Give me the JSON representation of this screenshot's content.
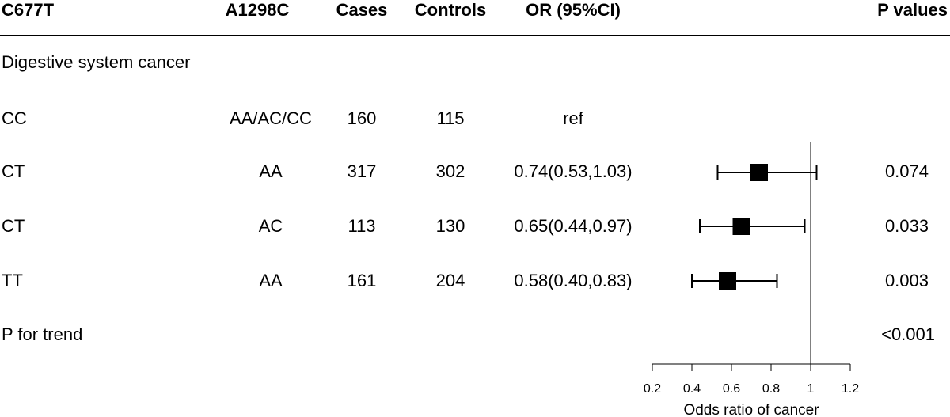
{
  "header": {
    "c677t": "C677T",
    "a1298c": "A1298C",
    "cases": "Cases",
    "controls": "Controls",
    "or": "OR (95%CI)",
    "pvalues": "P values"
  },
  "section_label": "Digestive system cancer",
  "rows": [
    {
      "c677t": "CC",
      "a1298c": "AA/AC/CC",
      "cases": "160",
      "controls": "115",
      "or_text": "ref",
      "p": ""
    },
    {
      "c677t": "CT",
      "a1298c": "AA",
      "cases": "317",
      "controls": "302",
      "or_text": "0.74(0.53,1.03)",
      "p": "0.074"
    },
    {
      "c677t": "CT",
      "a1298c": "AC",
      "cases": "113",
      "controls": "130",
      "or_text": "0.65(0.44,0.97)",
      "p": "0.033"
    },
    {
      "c677t": "TT",
      "a1298c": "AA",
      "cases": "161",
      "controls": "204",
      "or_text": "0.58(0.40,0.83)",
      "p": "0.003"
    }
  ],
  "trend": {
    "label": "P for trend",
    "p": "<0.001"
  },
  "chart_data": {
    "type": "forest",
    "xlabel": "Odds ratio of cancer",
    "xlim": [
      0.2,
      1.2
    ],
    "ticks": [
      0.2,
      0.4,
      0.6,
      0.8,
      1,
      1.2
    ],
    "tick_labels": [
      "0.2",
      "0.4",
      "0.6",
      "0.8",
      "1",
      "1.2"
    ],
    "reference_line": 1,
    "categories": [
      "CT AA",
      "CT AC",
      "TT AA"
    ],
    "estimates": [
      {
        "or": 0.74,
        "lower": 0.53,
        "upper": 1.03
      },
      {
        "or": 0.65,
        "lower": 0.44,
        "upper": 0.97
      },
      {
        "or": 0.58,
        "lower": 0.4,
        "upper": 0.83
      }
    ]
  }
}
